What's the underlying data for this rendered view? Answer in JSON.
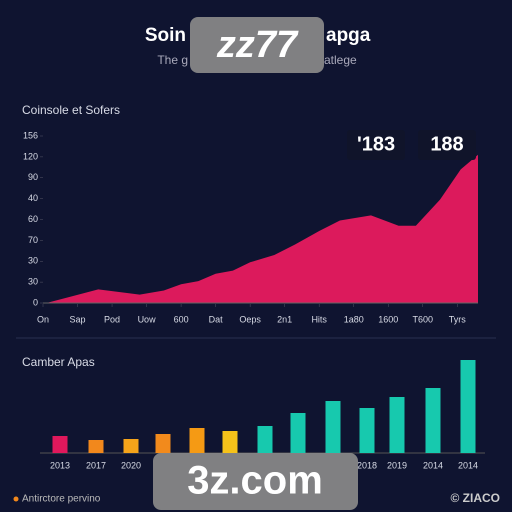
{
  "header": {
    "title_left": "Soin",
    "title_right": "apga",
    "subtitle_left": "The g",
    "subtitle_right": "atlege"
  },
  "chart_data": [
    {
      "type": "area",
      "title": "Coinsole et Sofers",
      "color": "#dc1a5c",
      "x": [
        0.1,
        0.9,
        1.6,
        2.8,
        3.5,
        4.0,
        4.5,
        5.0,
        5.5,
        6.0,
        6.7,
        7.3,
        8.0,
        8.6,
        9.5,
        10.3,
        10.8,
        11.5,
        12.1,
        12.6
      ],
      "values": [
        0,
        7,
        13,
        8,
        12,
        18,
        21,
        28,
        31,
        39,
        46,
        56,
        69,
        79,
        84,
        74,
        74,
        99,
        128,
        142
      ],
      "xlim": [
        0,
        12.6
      ],
      "xticks": [
        {
          "value": 0,
          "label": "On"
        },
        {
          "value": 1,
          "label": "Sap"
        },
        {
          "value": 2,
          "label": "Pod"
        },
        {
          "value": 3,
          "label": "Uow"
        },
        {
          "value": 4,
          "label": "600"
        },
        {
          "value": 5,
          "label": "Dat"
        },
        {
          "value": 6,
          "label": "Oeps"
        },
        {
          "value": 7,
          "label": "2n1"
        },
        {
          "value": 8,
          "label": "Hits"
        },
        {
          "value": 9,
          "label": "1a80"
        },
        {
          "value": 10,
          "label": "1600"
        },
        {
          "value": 11,
          "label": "T600"
        },
        {
          "value": 12,
          "label": "Tyrs"
        }
      ],
      "ylim": [
        0,
        160
      ],
      "yticks": [
        0,
        {
          "value": 20,
          "label": "30"
        },
        {
          "value": 40,
          "label": "30"
        },
        {
          "value": 60,
          "label": "70"
        },
        {
          "value": 80,
          "label": "60"
        },
        {
          "value": 100,
          "label": "40"
        },
        {
          "value": 120,
          "label": "90"
        },
        {
          "value": 140,
          "label": "120"
        },
        {
          "value": 160,
          "label": "156"
        }
      ],
      "annotations": [
        "'183",
        "188"
      ]
    },
    {
      "type": "bar",
      "title": "Camber Apas",
      "categories": [
        "2013",
        "2017",
        "2020",
        null,
        null,
        null,
        null,
        null,
        null,
        "2018",
        "2019",
        "2014",
        "2014"
      ],
      "values": [
        17,
        13,
        14,
        19,
        25,
        22,
        27,
        40,
        52,
        45,
        56,
        65,
        93
      ],
      "colors": [
        "#e0185c",
        "#f2881c",
        "#f5a41a",
        "#f28a1c",
        "#f59a14",
        "#f5c21a",
        "#17c9ae",
        "#17c9ae",
        "#17c9ae",
        "#17c9ae",
        "#17c9ae",
        "#17c9ae",
        "#17c9ae"
      ]
    }
  ],
  "footer": {
    "left": "Antirctore pervino",
    "right": "© ZIACO"
  },
  "watermarks": [
    "zz77",
    "3z.com"
  ]
}
